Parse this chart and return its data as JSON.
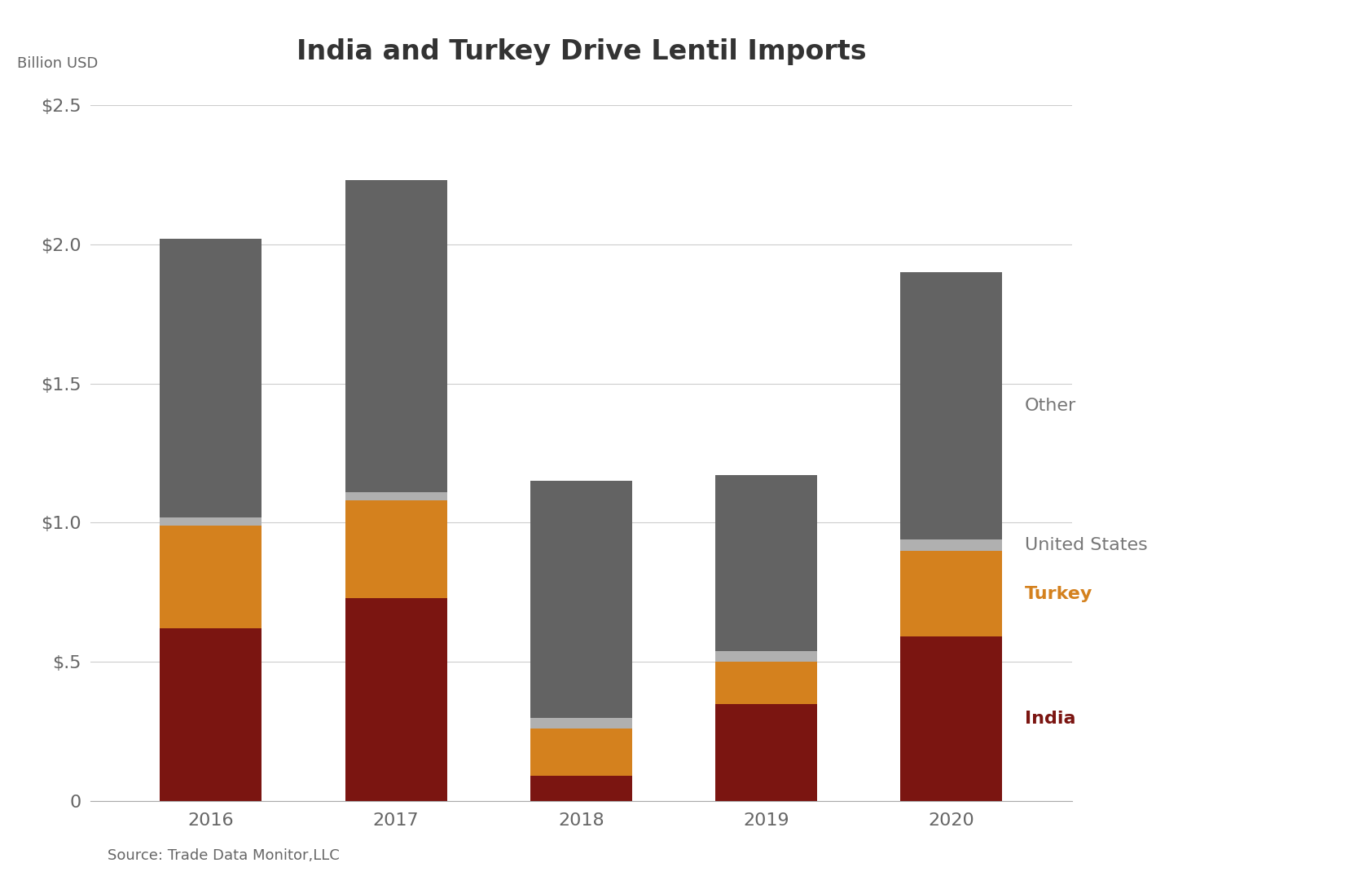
{
  "title": "India and Turkey Drive Lentil Imports",
  "ylabel": "Billion USD",
  "source": "Source: Trade Data Monitor,LLC",
  "years": [
    "2016",
    "2017",
    "2018",
    "2019",
    "2020"
  ],
  "india": [
    0.62,
    0.73,
    0.09,
    0.35,
    0.59
  ],
  "turkey": [
    0.37,
    0.35,
    0.17,
    0.15,
    0.31
  ],
  "united_states": [
    0.03,
    0.03,
    0.04,
    0.04,
    0.04
  ],
  "other": [
    1.0,
    1.12,
    0.85,
    0.63,
    0.96
  ],
  "color_india": "#7B1511",
  "color_turkey": "#D4811E",
  "color_united_states": "#B0B0B0",
  "color_other": "#636363",
  "ylim": [
    0,
    2.5
  ],
  "yticks": [
    0,
    0.5,
    1.0,
    1.5,
    2.0,
    2.5
  ],
  "ytick_labels": [
    "0",
    "$.5",
    "$1.0",
    "$1.5",
    "$2.0",
    "$2.5"
  ],
  "background_color": "#FFFFFF",
  "title_fontsize": 24,
  "label_fontsize": 13,
  "tick_fontsize": 16,
  "source_fontsize": 13,
  "bar_width": 0.55
}
